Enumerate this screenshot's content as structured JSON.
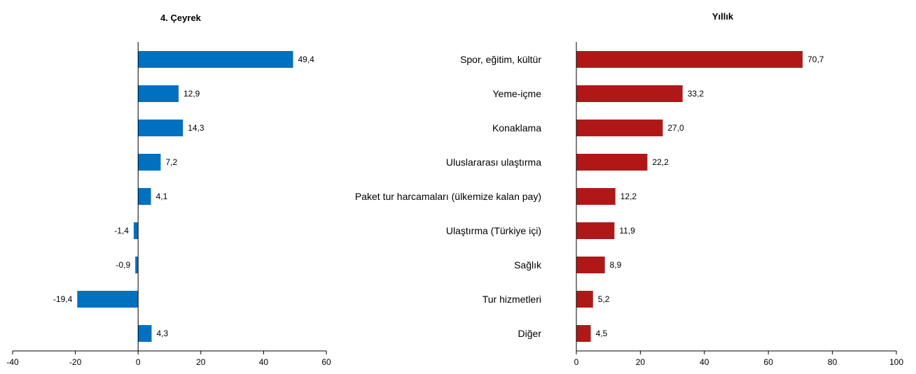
{
  "chart_data": [
    {
      "type": "bar",
      "orientation": "horizontal",
      "title": "4. Çeyrek",
      "categories": [
        "Spor, eğitim, kültür",
        "Yeme-içme",
        "Konaklama",
        "Uluslararası ulaştırma",
        "Paket tur harcamaları (ülkemize kalan pay)",
        "Ulaştırma (Türkiye içi)",
        "Sağlık",
        "Tur hizmetleri",
        "Diğer"
      ],
      "values": [
        49.4,
        12.9,
        14.3,
        7.2,
        4.1,
        -1.4,
        -0.9,
        -19.4,
        4.3
      ],
      "value_labels": [
        "49,4",
        "12,9",
        "14,3",
        "7,2",
        "4,1",
        "-1,4",
        "-0,9",
        "-19,4",
        "4,3"
      ],
      "xlim": [
        -40,
        60
      ],
      "xticks": [
        "-40",
        "-20",
        "0",
        "20",
        "40",
        "60"
      ],
      "xtick_values": [
        -40,
        -20,
        0,
        20,
        40,
        60
      ],
      "color": "#0070C0",
      "grid": false
    },
    {
      "type": "bar",
      "orientation": "horizontal",
      "title": "Yıllık",
      "categories": [
        "Spor, eğitim, kültür",
        "Yeme-içme",
        "Konaklama",
        "Uluslararası ulaştırma",
        "Paket tur harcamaları (ülkemize kalan pay)",
        "Ulaştırma (Türkiye içi)",
        "Sağlık",
        "Tur hizmetleri",
        "Diğer"
      ],
      "values": [
        70.7,
        33.2,
        27.0,
        22.2,
        12.2,
        11.9,
        8.9,
        5.2,
        4.5
      ],
      "value_labels": [
        "70,7",
        "33,2",
        "27,0",
        "22,2",
        "12,2",
        "11,9",
        "8,9",
        "5,2",
        "4,5"
      ],
      "xlim": [
        0,
        100
      ],
      "xticks": [
        "0",
        "20",
        "40",
        "60",
        "80",
        "100"
      ],
      "xtick_values": [
        0,
        20,
        40,
        60,
        80,
        100
      ],
      "color": "#B01818",
      "grid": false
    }
  ]
}
